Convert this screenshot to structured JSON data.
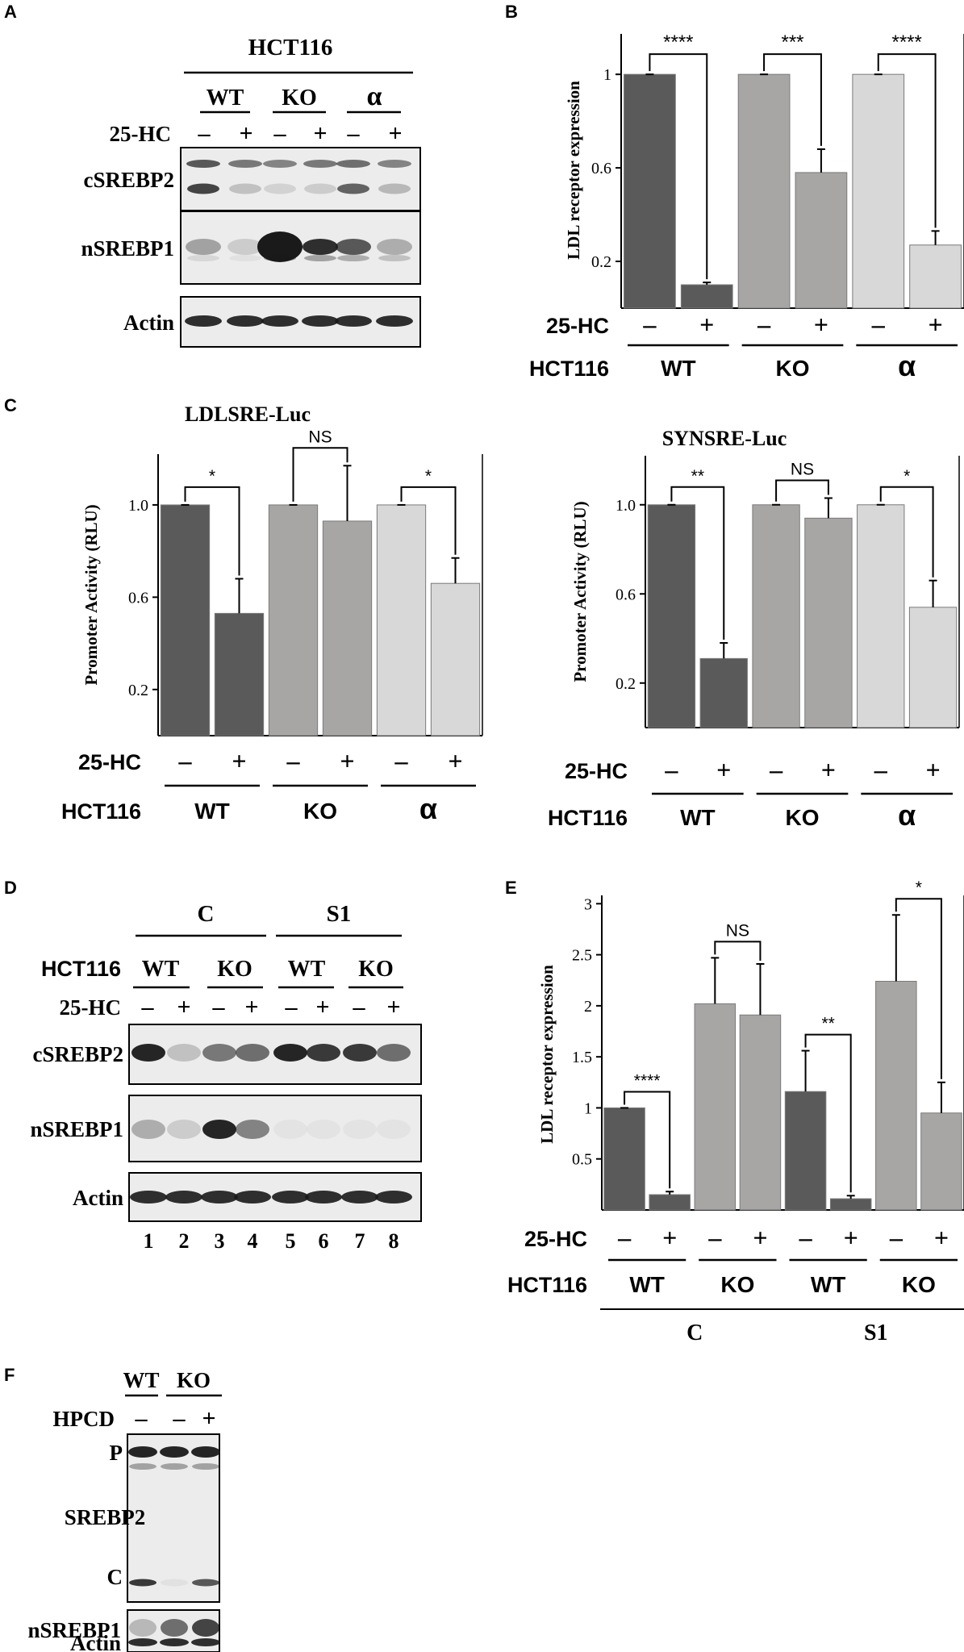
{
  "panel_letters": {
    "a": "A",
    "b": "B",
    "c": "C",
    "d": "D",
    "e": "E",
    "f": "F"
  },
  "colors": {
    "wt": "#5a5a5a",
    "ko": "#a8a6a5",
    "alpha": "#d8d8d8",
    "blot_bg": "#ececec",
    "band": "#1a1a1a"
  },
  "symbols": {
    "minus": "–",
    "plus": "+"
  },
  "panelA": {
    "cell_line": "HCT116",
    "groups": [
      "WT",
      "KO",
      "α"
    ],
    "treatment": "25-HC",
    "rows": [
      "cSREBP2",
      "nSREBP1",
      "Actin"
    ]
  },
  "panelD": {
    "top_groups": [
      "C",
      "S1"
    ],
    "cell_line": "HCT116",
    "groups": [
      "WT",
      "KO",
      "WT",
      "KO"
    ],
    "treatment": "25-HC",
    "rows": [
      "cSREBP2",
      "nSREBP1",
      "Actin"
    ],
    "lanes": [
      "1",
      "2",
      "3",
      "4",
      "5",
      "6",
      "7",
      "8"
    ]
  },
  "panelF": {
    "groups": [
      "WT",
      "KO"
    ],
    "treatment": "HPCD",
    "signs": [
      "–",
      "–",
      "+"
    ],
    "rows": [
      "P",
      "SREBP2",
      "C",
      "nSREBP1",
      "Actin"
    ]
  },
  "chart_data": [
    {
      "id": "B",
      "type": "bar",
      "ylabel": "LDL receptor expression",
      "yticks": [
        "1",
        "0.6",
        "0.2"
      ],
      "ylim": [
        0,
        1.18
      ],
      "treatment_label": "25-HC",
      "cell_label": "HCT116",
      "categories": [
        "WT −",
        "WT +",
        "KO −",
        "KO +",
        "α −",
        "α +"
      ],
      "groups": [
        "WT",
        "KO",
        "α"
      ],
      "values": [
        1.0,
        0.1,
        1.0,
        0.58,
        1.0,
        0.27
      ],
      "errors": [
        0,
        0.01,
        0,
        0.1,
        0,
        0.06
      ],
      "significance": [
        "****",
        "***",
        "****"
      ]
    },
    {
      "id": "C-left",
      "type": "bar",
      "title": "LDLSRE-Luc",
      "ylabel": "Promoter Activity (RLU)",
      "yticks": [
        "1.0",
        "0.6",
        "0.2"
      ],
      "ylim": [
        0,
        1.22
      ],
      "treatment_label": "25-HC",
      "cell_label": "HCT116",
      "categories": [
        "WT −",
        "WT +",
        "KO −",
        "KO +",
        "α −",
        "α +"
      ],
      "groups": [
        "WT",
        "KO",
        "α"
      ],
      "values": [
        1.0,
        0.53,
        1.0,
        0.93,
        1.0,
        0.66
      ],
      "errors": [
        0,
        0.15,
        0,
        0.24,
        0,
        0.11
      ],
      "significance": [
        "*",
        "NS",
        "*"
      ]
    },
    {
      "id": "C-right",
      "type": "bar",
      "title": "SYNSRE-Luc",
      "ylabel": "Promoter Activity (RLU)",
      "yticks": [
        "1.0",
        "0.6",
        "0.2"
      ],
      "ylim": [
        0,
        1.22
      ],
      "treatment_label": "25-HC",
      "cell_label": "HCT116",
      "categories": [
        "WT −",
        "WT +",
        "KO −",
        "KO +",
        "α −",
        "α +"
      ],
      "groups": [
        "WT",
        "KO",
        "α"
      ],
      "values": [
        1.0,
        0.31,
        1.0,
        0.94,
        1.0,
        0.54
      ],
      "errors": [
        0,
        0.07,
        0,
        0.09,
        0,
        0.12
      ],
      "significance": [
        "**",
        "NS",
        "*"
      ]
    },
    {
      "id": "E",
      "type": "bar",
      "ylabel": "LDL receptor expression",
      "yticks": [
        "3",
        "2.5",
        "2",
        "1.5",
        "1",
        "0.5"
      ],
      "ylim": [
        0,
        3.05
      ],
      "treatment_label": "25-HC",
      "cell_label": "HCT116",
      "categories": [
        "C WT −",
        "C WT +",
        "C KO −",
        "C KO +",
        "S1 WT −",
        "S1 WT +",
        "S1 KO −",
        "S1 KO +"
      ],
      "groups": [
        "WT",
        "KO",
        "WT",
        "KO"
      ],
      "top_groups": [
        "C",
        "S1"
      ],
      "values": [
        1.0,
        0.15,
        2.02,
        1.91,
        1.16,
        0.11,
        2.24,
        0.95
      ],
      "errors": [
        0,
        0.03,
        0.45,
        0.5,
        0.4,
        0.03,
        0.65,
        0.3
      ],
      "significance": [
        "****",
        "NS",
        "**",
        "*"
      ]
    }
  ]
}
